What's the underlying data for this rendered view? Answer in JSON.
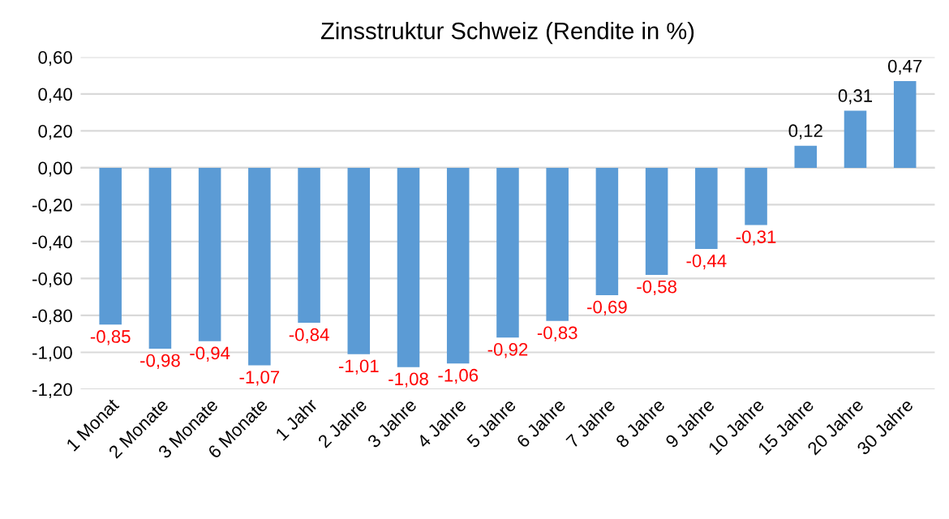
{
  "chart_data": {
    "type": "bar",
    "title": "Zinsstruktur Schweiz (Rendite in %)",
    "categories": [
      "1 Monat",
      "2 Monate",
      "3 Monate",
      "6 Monate",
      "1 Jahr",
      "2 Jahre",
      "3 Jahre",
      "4 Jahre",
      "5 Jahre",
      "6 Jahre",
      "7 Jahre",
      "8 Jahre",
      "9 Jahre",
      "10 Jahre",
      "15 Jahre",
      "20 Jahre",
      "30 Jahre"
    ],
    "values": [
      -0.85,
      -0.98,
      -0.94,
      -1.07,
      -0.84,
      -1.01,
      -1.08,
      -1.06,
      -0.92,
      -0.83,
      -0.69,
      -0.58,
      -0.44,
      -0.31,
      0.12,
      0.31,
      0.47
    ],
    "value_labels": [
      "-0,85",
      "-0,98",
      "-0,94",
      "-1,07",
      "-0,84",
      "-1,01",
      "-1,08",
      "-1,06",
      "-0,92",
      "-0,83",
      "-0,69",
      "-0,58",
      "-0,44",
      "-0,31",
      "0,12",
      "0,31",
      "0,47"
    ],
    "color": "#5b9bd5",
    "ylim": [
      -1.2,
      0.6
    ],
    "yticks": [
      {
        "value": -1.2,
        "label": "-1,20"
      },
      {
        "value": -1.0,
        "label": "-1,00"
      },
      {
        "value": -0.8,
        "label": "-0,80"
      },
      {
        "value": -0.6,
        "label": "-0,60"
      },
      {
        "value": -0.4,
        "label": "-0,40"
      },
      {
        "value": -0.2,
        "label": "-0,20"
      },
      {
        "value": 0.0,
        "label": "0,00"
      },
      {
        "value": 0.2,
        "label": "0,20"
      },
      {
        "value": 0.4,
        "label": "0,40"
      },
      {
        "value": 0.6,
        "label": "0,60"
      }
    ],
    "grid": "y"
  }
}
